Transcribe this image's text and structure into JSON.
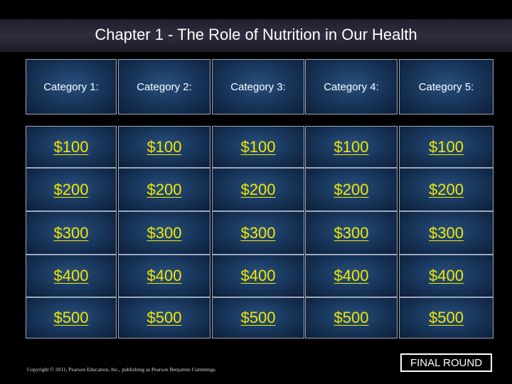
{
  "title": "Chapter 1 - The Role of Nutrition in Our Health",
  "categories": [
    "Category 1:",
    "Category 2:",
    "Category 3:",
    "Category 4:",
    "Category 5:"
  ],
  "values": [
    "$100",
    "$200",
    "$300",
    "$400",
    "$500"
  ],
  "final_round_label": "FINAL ROUND",
  "copyright": "Copyright © 2011, Pearson Education, Inc., publishing as Pearson Benjamin Cummings.",
  "colors": {
    "money_text": "#f3e600",
    "cell_blue": "#173357",
    "cell_border": "#9aa8c0",
    "background": "#000000"
  }
}
